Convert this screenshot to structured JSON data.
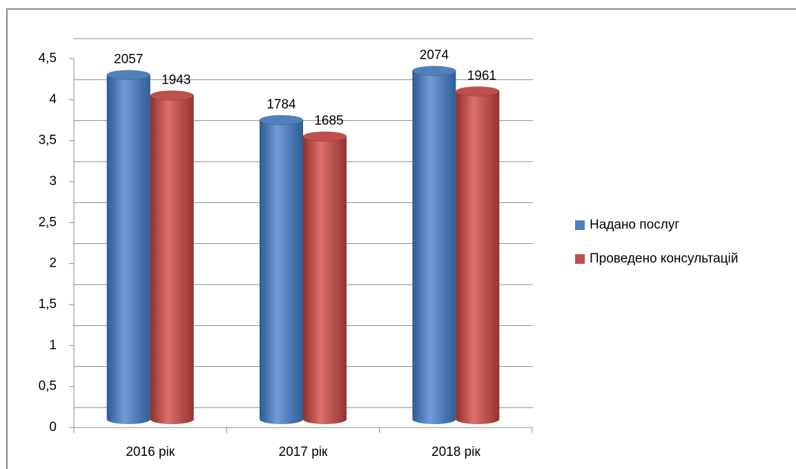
{
  "chart_data": {
    "type": "bar",
    "categories": [
      "2016 рік",
      "2017 рік",
      "2018 рік"
    ],
    "series": [
      {
        "name": "Надано послуг",
        "color": "#4f81bd",
        "values": [
          4.2,
          3.65,
          4.25
        ],
        "value_labels": [
          "2057",
          "1784",
          "2074"
        ]
      },
      {
        "name": "Проведено консультацій",
        "color": "#c0504d",
        "values": [
          3.95,
          3.45,
          4.0
        ],
        "value_labels": [
          "1943",
          "1685",
          "1961"
        ]
      }
    ],
    "ylim": [
      0,
      4.5
    ],
    "yticks": [
      0,
      {
        "value": 0.5,
        "label": "0,5"
      },
      1,
      {
        "value": 1.5,
        "label": "1,5"
      },
      2,
      {
        "value": 2.5,
        "label": "2,5"
      },
      3,
      {
        "value": 3.5,
        "label": "3,5"
      },
      4,
      {
        "value": 4.5,
        "label": "4,5"
      }
    ],
    "grid": true,
    "legend": "right"
  }
}
